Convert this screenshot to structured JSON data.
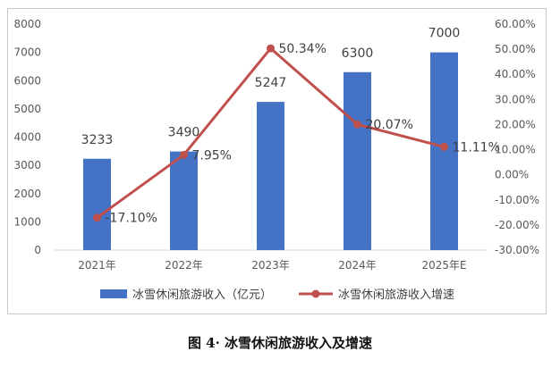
{
  "caption": "图 4· 冰雪休闲旅游收入及增速",
  "chart_data": {
    "type": "bar",
    "categories": [
      "2021年",
      "2022年",
      "2023年",
      "2024年",
      "2025年E"
    ],
    "ylim_left": [
      0,
      8000
    ],
    "ylim_right": [
      -30,
      60
    ],
    "left_ticks": [
      "0",
      "1000",
      "2000",
      "3000",
      "4000",
      "5000",
      "6000",
      "7000",
      "8000"
    ],
    "right_ticks": [
      "-30.00%",
      "-20.00%",
      "-10.00%",
      "0.00%",
      "10.00%",
      "20.00%",
      "30.00%",
      "40.00%",
      "50.00%",
      "60.00%"
    ],
    "grid": false,
    "legend_position": "bottom",
    "series": [
      {
        "name": "冰雪休闲旅游收入（亿元）",
        "type": "bar",
        "axis": "left",
        "color": "#4472c4",
        "values": [
          3233,
          3490,
          5247,
          6300,
          7000
        ],
        "labels": [
          "3233",
          "3490",
          "5247",
          "6300",
          "7000"
        ]
      },
      {
        "name": "冰雪休闲旅游收入增速",
        "type": "line",
        "axis": "right",
        "color": "#c0504d",
        "values": [
          -17.1,
          7.95,
          50.34,
          20.07,
          11.11
        ],
        "labels": [
          "-17.10%",
          "7.95%",
          "50.34%",
          "20.07%",
          "11.11%"
        ]
      }
    ]
  }
}
